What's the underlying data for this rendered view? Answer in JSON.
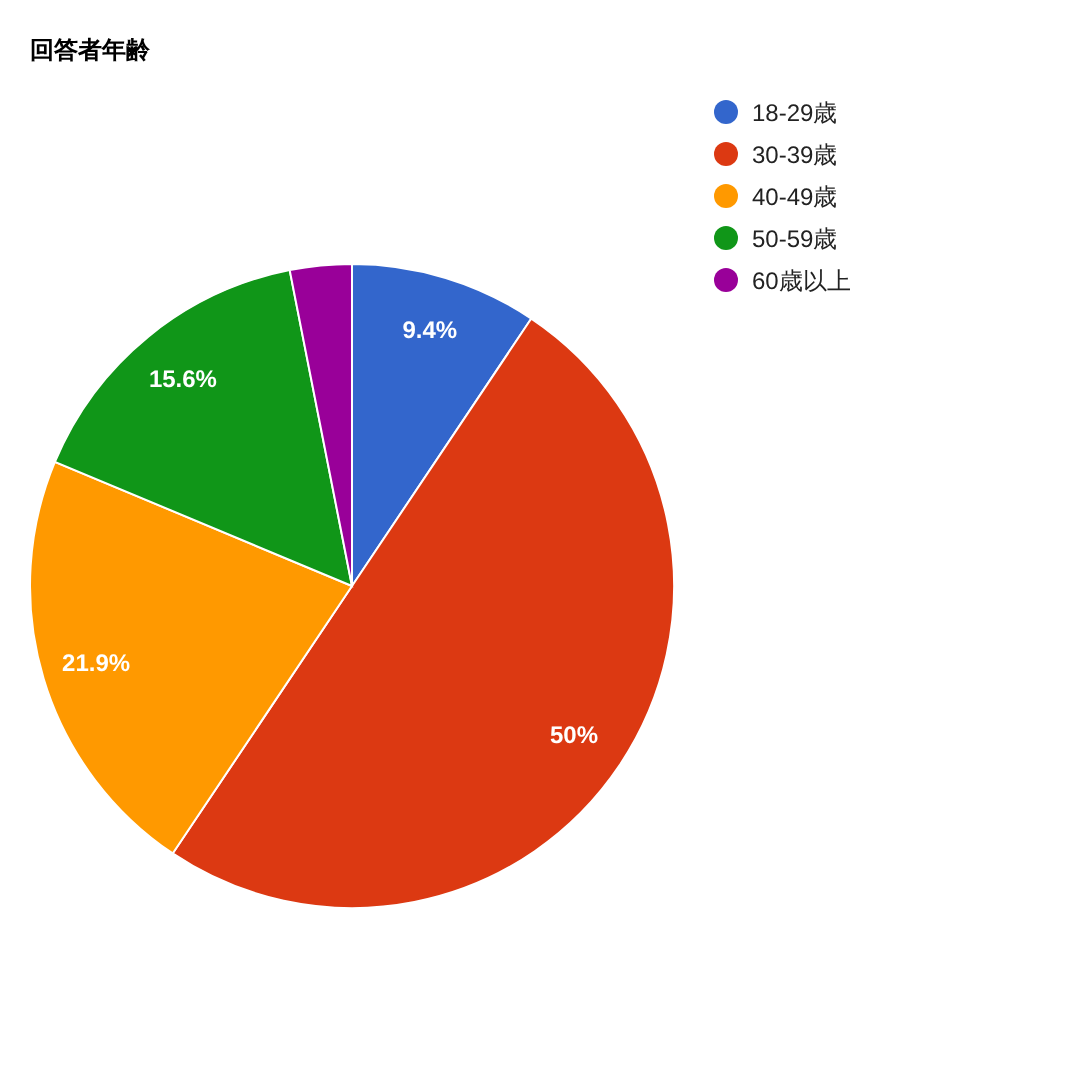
{
  "chart_data": {
    "type": "pie",
    "title": "回答者年齢",
    "categories": [
      "18-29歳",
      "30-39歳",
      "40-49歳",
      "50-59歳",
      "60歳以上"
    ],
    "values": [
      9.4,
      50,
      21.9,
      15.6,
      3.1
    ],
    "value_labels": [
      "9.4%",
      "50%",
      "21.9%",
      "15.6%",
      null
    ],
    "colors": [
      "#3366cc",
      "#dc3912",
      "#ff9900",
      "#109618",
      "#990099"
    ],
    "legend": "top right"
  }
}
